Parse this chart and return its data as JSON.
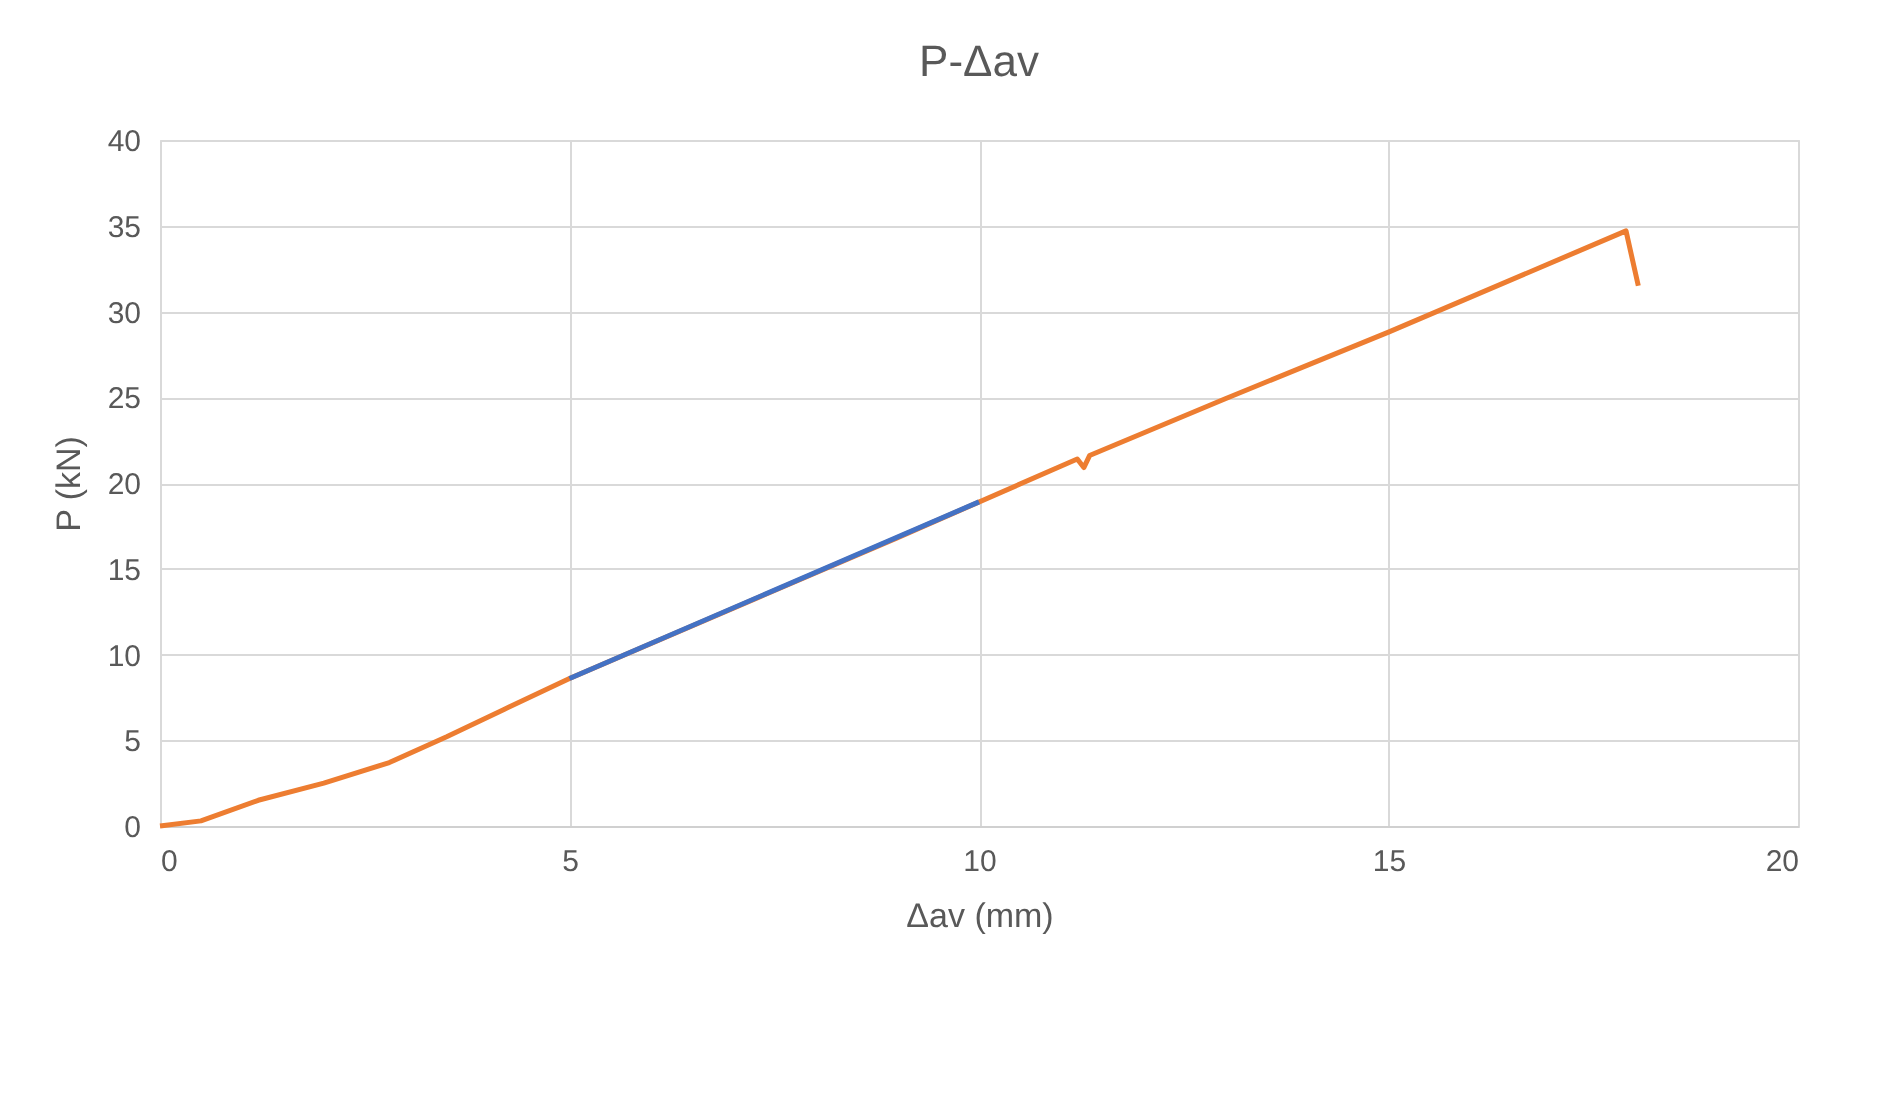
{
  "chart_data": {
    "type": "line",
    "title": "P-Δav",
    "xlabel": "Δav (mm)",
    "ylabel": "P (kN)",
    "xlim": [
      0,
      20
    ],
    "xticks": [
      0,
      5,
      10,
      15,
      20
    ],
    "ylim": [
      0,
      40
    ],
    "yticks": [
      0,
      5,
      10,
      15,
      20,
      25,
      30,
      35,
      40
    ],
    "grid": true,
    "marker": "none",
    "line_style": "solid",
    "series": [
      {
        "color": "#ed7d31",
        "x": [
          0,
          0.5,
          1.2,
          2,
          2.8,
          3.5,
          4.2,
          5,
          7,
          9,
          11.2,
          11.28,
          11.35,
          13,
          15,
          17.9,
          18.05
        ],
        "values": [
          0,
          0.3,
          1.5,
          2.5,
          3.7,
          5.2,
          6.8,
          8.6,
          12.7,
          16.8,
          21.4,
          20.9,
          21.6,
          24.9,
          28.8,
          34.7,
          31.5
        ]
      },
      {
        "color": "#4472c4",
        "x": [
          5,
          10
        ],
        "values": [
          8.6,
          18.9
        ]
      }
    ]
  }
}
